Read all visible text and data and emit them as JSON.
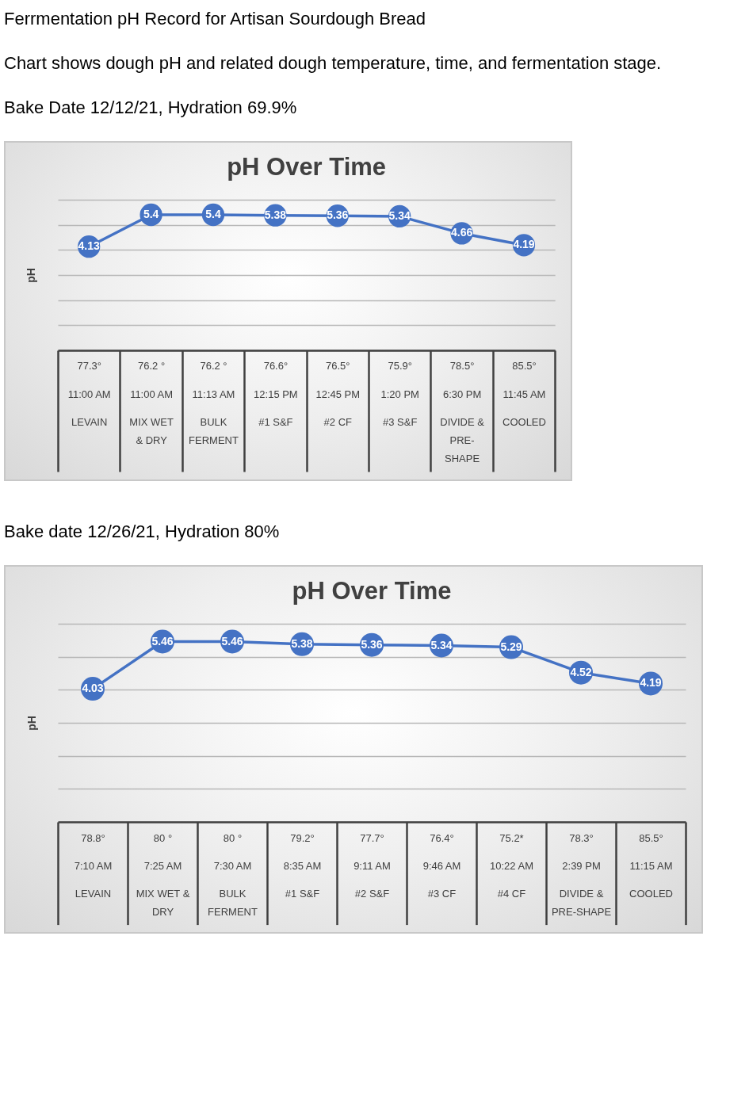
{
  "chart_data": [
    {
      "type": "line",
      "title": "pH Over Time",
      "ylabel": "pH",
      "annotations": [
        "Ferrmentation pH Record for Artisan Sourdough Bread",
        "Chart shows dough pH and related dough temperature, time, and fermentation stage.",
        "Bake Date 12/12/21, Hydration 69.9%"
      ],
      "categories": [
        "77.3°\n11:00 AM\nLEVAIN",
        "76.2 °\n11:00 AM\nMIX WET & DRY",
        "76.2 °\n11:13 AM\nBULK FERMENT",
        "76.6°\n12:15 PM\n#1 S&F",
        "76.5°\n12:45 PM\n#2 CF",
        "75.9°\n1:20 PM\n#3 S&F",
        "78.5°\n6:30 PM\nDIVIDE & PRE-SHAPE",
        "85.5°\n11:45 AM\nCOOLED"
      ],
      "values": [
        4.13,
        5.4,
        5.4,
        5.38,
        5.36,
        5.34,
        4.66,
        4.19
      ],
      "color": "#4472c4",
      "ylim": [
        0,
        6
      ],
      "yticks": [
        0,
        1,
        2,
        3,
        4,
        5,
        6
      ],
      "grid": "y",
      "tick_labels": "x",
      "marker": "circle",
      "data_labels": true
    },
    {
      "type": "line",
      "title": "pH Over Time",
      "ylabel": "pH",
      "annotations": [
        "Bake date 12/26/21, Hydration 80%"
      ],
      "categories": [
        "78.8°\n7:10 AM\nLEVAIN",
        "80 °\n7:25 AM\nMIX WET & DRY",
        "80 °\n7:30 AM\nBULK FERMENT",
        "79.2°\n8:35 AM\n#1 S&F",
        "77.7°\n9:11 AM\n#2 S&F",
        "76.4°\n9:46 AM\n#3 CF",
        "75.2*\n10:22 AM\n#4 CF",
        "78.3°\n2:39 PM\nDIVIDE & PRE-SHAPE",
        "85.5°\n11:15 AM\nCOOLED"
      ],
      "values": [
        4.03,
        5.46,
        5.46,
        5.38,
        5.36,
        5.34,
        5.29,
        4.52,
        4.19
      ],
      "color": "#4472c4",
      "ylim": [
        0,
        6
      ],
      "yticks": [
        0,
        1,
        2,
        3,
        4,
        5,
        6
      ],
      "grid": "y",
      "tick_labels": "x",
      "marker": "circle",
      "data_labels": true
    }
  ]
}
